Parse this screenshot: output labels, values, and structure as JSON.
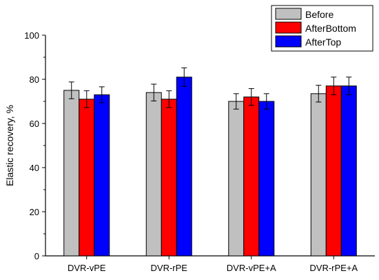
{
  "chart_data": {
    "type": "bar",
    "title": "",
    "xlabel": "",
    "ylabel": "Elastic recovery, %",
    "ylim": [
      0,
      100
    ],
    "yticks": [
      0,
      20,
      40,
      60,
      80,
      100
    ],
    "categories": [
      "DVR-vPE",
      "DVR-rPE",
      "DVR-vPE+A",
      "DVR-rPE+A"
    ],
    "series": [
      {
        "name": "Before",
        "color": "#c0c0c0",
        "values": [
          75,
          74,
          70,
          73.5
        ],
        "errors": [
          3.8,
          3.8,
          3.5,
          3.8
        ]
      },
      {
        "name": "AfterBottom",
        "color": "#ff0000",
        "values": [
          71,
          71,
          72,
          77
        ],
        "errors": [
          3.8,
          3.8,
          3.8,
          4.0
        ]
      },
      {
        "name": "AfterTop",
        "color": "#0000ff",
        "values": [
          73,
          81,
          70,
          77
        ],
        "errors": [
          3.6,
          4.2,
          3.5,
          4.0
        ]
      }
    ],
    "legend": "top-right",
    "grid": false
  }
}
